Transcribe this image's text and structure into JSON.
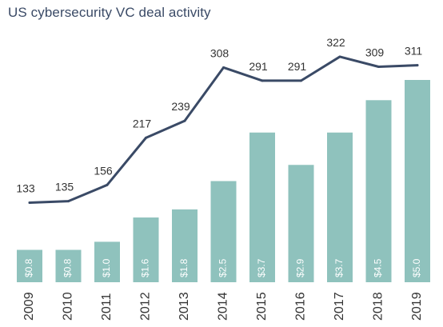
{
  "chart_data": {
    "type": "bar+line",
    "title": "US cybersecurity VC deal activity",
    "categories": [
      "2009",
      "2010",
      "2011",
      "2012",
      "2013",
      "2014",
      "2015",
      "2016",
      "2017",
      "2018",
      "2019"
    ],
    "series": [
      {
        "kind": "bar",
        "values": [
          0.8,
          0.8,
          1.0,
          1.6,
          1.8,
          2.5,
          3.7,
          2.9,
          3.7,
          4.5,
          5.0
        ],
        "labels": [
          "$0.8",
          "$0.8",
          "$1.0",
          "$1.6",
          "$1.8",
          "$2.5",
          "$3.7",
          "$2.9",
          "$3.7",
          "$4.5",
          "$5.0"
        ]
      },
      {
        "kind": "line",
        "values": [
          133,
          135,
          156,
          217,
          239,
          308,
          291,
          291,
          322,
          309,
          311
        ],
        "labels": [
          "133",
          "135",
          "156",
          "217",
          "239",
          "308",
          "291",
          "291",
          "322",
          "309",
          "311"
        ]
      }
    ],
    "colors": {
      "bar": "#8fc2bd",
      "line": "#3a4a66",
      "title": "#3a4a66",
      "text": "#333333"
    },
    "grid": false,
    "legend": "none"
  }
}
